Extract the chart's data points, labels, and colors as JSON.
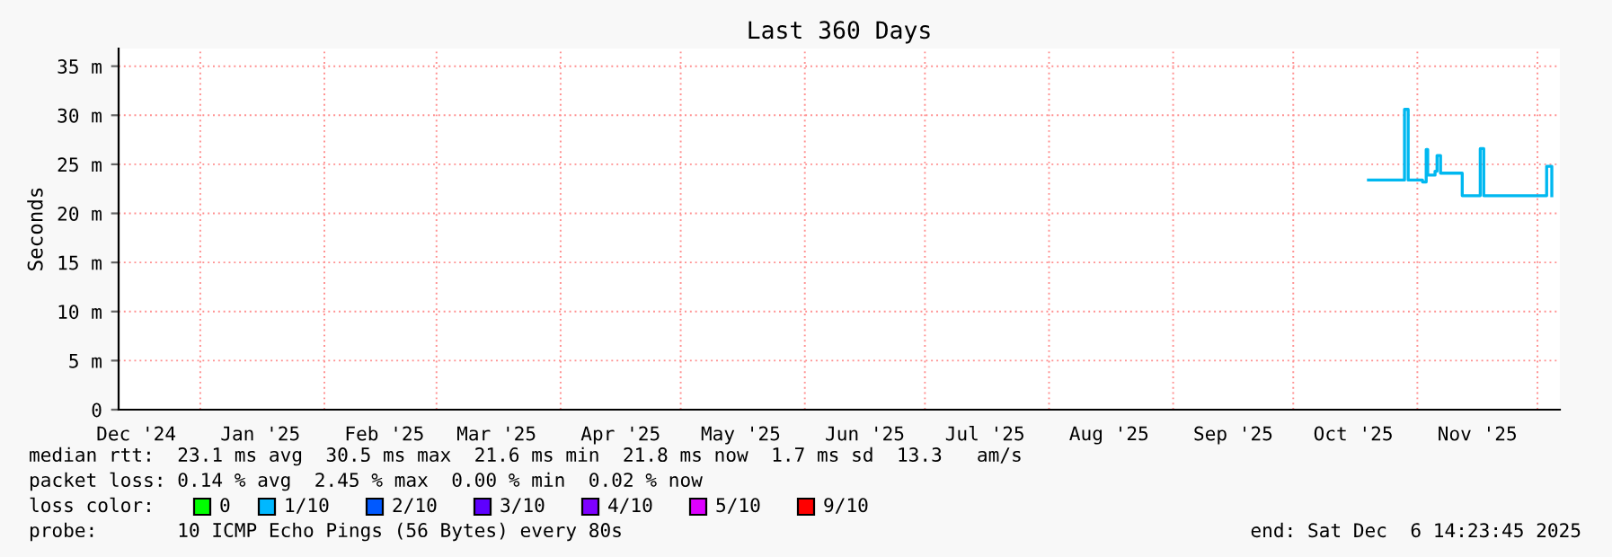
{
  "chart_data": {
    "type": "step",
    "title": "Last 360 Days",
    "ylabel": "Seconds",
    "legend_title": "loss color:",
    "legend": "bottom",
    "grid": true,
    "xlim": [
      "2024-12-11T14:23",
      "2025-12-06T14:23"
    ],
    "xticks": [
      {
        "value": "2024-12-16",
        "label": "Dec '24"
      },
      {
        "value": "2025-01-16",
        "label": "Jan '25"
      },
      {
        "value": "2025-02-16",
        "label": "Feb '25"
      },
      {
        "value": "2025-03-16",
        "label": "Mar '25"
      },
      {
        "value": "2025-04-16",
        "label": "Apr '25"
      },
      {
        "value": "2025-05-16",
        "label": "May '25"
      },
      {
        "value": "2025-06-16",
        "label": "Jun '25"
      },
      {
        "value": "2025-07-16",
        "label": "Jul '25"
      },
      {
        "value": "2025-08-16",
        "label": "Aug '25"
      },
      {
        "value": "2025-09-16",
        "label": "Sep '25"
      },
      {
        "value": "2025-10-16",
        "label": "Oct '25"
      },
      {
        "value": "2025-11-16",
        "label": "Nov '25"
      },
      {
        "value": "2025-01-01",
        "label": null
      },
      {
        "value": "2025-02-01",
        "label": null
      },
      {
        "value": "2025-03-01",
        "label": null
      },
      {
        "value": "2025-04-01",
        "label": null
      },
      {
        "value": "2025-05-01",
        "label": null
      },
      {
        "value": "2025-06-01",
        "label": null
      },
      {
        "value": "2025-07-01",
        "label": null
      },
      {
        "value": "2025-08-01",
        "label": null
      },
      {
        "value": "2025-09-01",
        "label": null
      },
      {
        "value": "2025-10-01",
        "label": null
      },
      {
        "value": "2025-11-01",
        "label": null
      },
      {
        "value": "2025-12-01",
        "label": null
      }
    ],
    "ylim": [
      0,
      36.8
    ],
    "yticks": [
      0,
      {
        "value": 5,
        "label": "5 m"
      },
      {
        "value": 10,
        "label": "10 m"
      },
      {
        "value": 15,
        "label": "15 m"
      },
      {
        "value": 20,
        "label": "20 m"
      },
      {
        "value": 25,
        "label": "25 m"
      },
      {
        "value": 30,
        "label": "30 m"
      },
      {
        "value": 35,
        "label": "35 m"
      }
    ],
    "series": [
      {
        "color": "#00b8f0",
        "x": [
          "2025-10-19T19:00",
          "2025-10-27T22:00",
          "2025-10-28T19:00",
          "2025-10-29T17:00",
          "2025-11-02T07:00",
          "2025-11-03T05:00",
          "2025-11-03T14:00",
          "2025-11-05T10:00",
          "2025-11-05T22:00",
          "2025-11-06T19:00",
          "2025-11-11T17:00",
          "2025-11-12T05:00",
          "2025-11-15T19:00",
          "2025-11-16T17:00",
          "2025-11-17T14:00",
          "2025-12-02T10:00",
          "2025-12-03T07:00",
          "2025-12-04T05:00",
          "2025-12-04T14:00"
        ],
        "values": [
          23.4,
          23.4,
          30.6,
          23.4,
          23.2,
          26.5,
          23.9,
          24.3,
          25.9,
          24.1,
          24.1,
          21.8,
          21.8,
          26.6,
          21.8,
          21.8,
          24.8,
          24.8,
          21.8
        ]
      },
      {
        "name": "0",
        "color": "#00ff00"
      },
      {
        "name": "1/10",
        "color": "#00b8ff"
      },
      {
        "name": "2/10",
        "color": "#0059ff"
      },
      {
        "name": "3/10",
        "color": "#5e00ff"
      },
      {
        "name": "4/10",
        "color": "#7e00ff"
      },
      {
        "name": "5/10",
        "color": "#dd00ff"
      },
      {
        "name": "9/10",
        "color": "#ff0000"
      }
    ],
    "annotations": [
      "median rtt:  23.1 ms avg  30.5 ms max  21.6 ms min  21.8 ms now  1.7 ms sd  13.3   am/s",
      "packet loss: 0.14 % avg  2.45 % max  0.00 % min  0.02 % now",
      "probe:       10 ICMP Echo Pings (56 Bytes) every 80s",
      "end: Sat Dec  6 14:23:45 2025"
    ]
  }
}
